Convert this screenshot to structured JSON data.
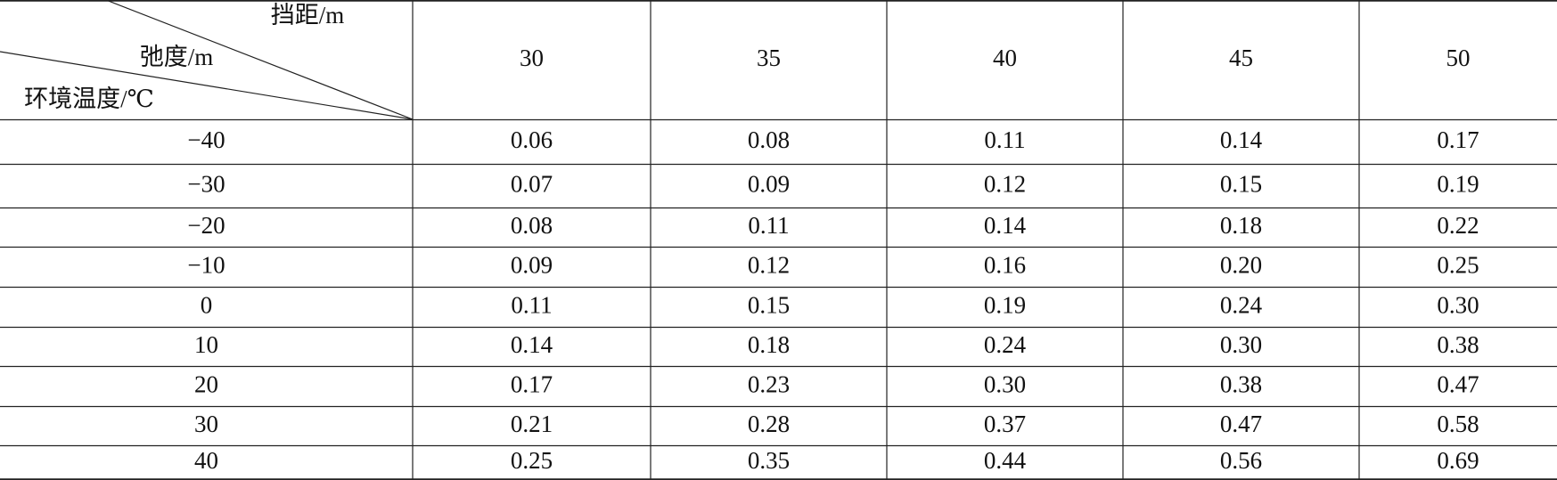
{
  "table": {
    "corner": {
      "span_label": "挡距/m",
      "sag_label": "弛度/m",
      "temperature_label": "环境温度/℃"
    },
    "columns": [
      "30",
      "35",
      "40",
      "45",
      "50"
    ],
    "rows": [
      [
        "−40",
        "0.06",
        "0.08",
        "0.11",
        "0.14",
        "0.17"
      ],
      [
        "−30",
        "0.07",
        "0.09",
        "0.12",
        "0.15",
        "0.19"
      ],
      [
        "−20",
        "0.08",
        "0.11",
        "0.14",
        "0.18",
        "0.22"
      ],
      [
        "−10",
        "0.09",
        "0.12",
        "0.16",
        "0.20",
        "0.25"
      ],
      [
        "0",
        "0.11",
        "0.15",
        "0.19",
        "0.24",
        "0.30"
      ],
      [
        "10",
        "0.14",
        "0.18",
        "0.24",
        "0.30",
        "0.38"
      ],
      [
        "20",
        "0.17",
        "0.23",
        "0.30",
        "0.38",
        "0.47"
      ],
      [
        "30",
        "0.21",
        "0.28",
        "0.37",
        "0.47",
        "0.58"
      ],
      [
        "40",
        "0.25",
        "0.35",
        "0.44",
        "0.56",
        "0.69"
      ]
    ]
  }
}
